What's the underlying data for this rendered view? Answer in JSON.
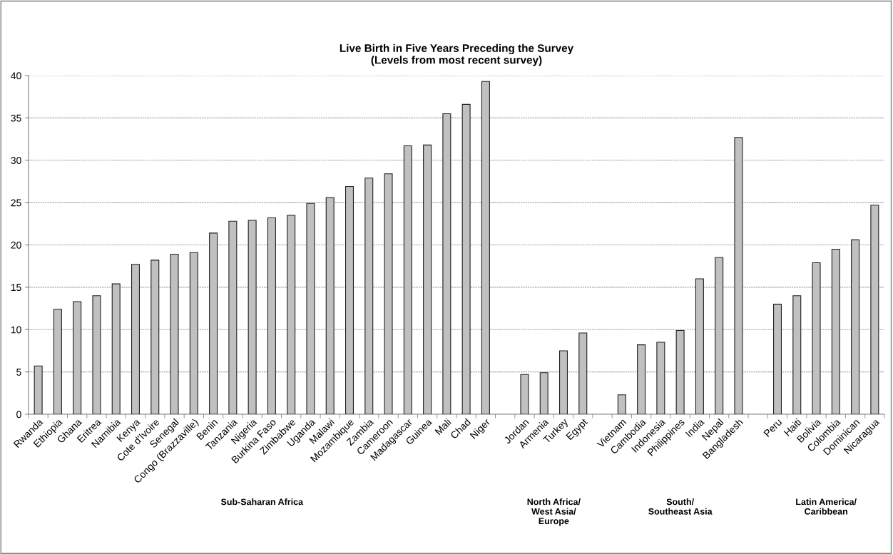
{
  "chart_data": {
    "type": "bar",
    "title": "Live Birth in Five Years Preceding the Survey\n(Levels from most recent survey)",
    "categories": [
      "Rwanda",
      "Ethiopia",
      "Ghana",
      "Eritrea",
      "Namibia",
      "Kenya",
      "Cote d'Ivoire",
      "Senegal",
      "Congo (Brazzaville)",
      "Benin",
      "Tanzania",
      "Nigeria",
      "Burkina Faso",
      "Zimbabwe",
      "Uganda",
      "Malawi",
      "Mozambique",
      "Zambia",
      "Cameroon",
      "Madagascar",
      "Guinea",
      "Mali",
      "Chad",
      "Niger",
      null,
      "Jordan",
      "Armenia",
      "Turkey",
      "Egypt",
      null,
      "Vietnam",
      "Cambodia",
      "Indonesia",
      "Philippines",
      "India",
      "Nepal",
      "Bangladesh",
      null,
      "Peru",
      "Haiti",
      "Bolivia",
      "Colombia",
      "Dominican",
      "Nicaragua"
    ],
    "values": [
      5.7,
      12.4,
      13.3,
      14.0,
      15.4,
      17.7,
      18.2,
      18.9,
      19.1,
      21.4,
      22.8,
      22.9,
      23.2,
      23.5,
      24.9,
      25.6,
      26.9,
      27.9,
      28.4,
      31.7,
      31.8,
      35.5,
      36.6,
      39.3,
      null,
      4.7,
      4.9,
      7.5,
      9.6,
      null,
      2.3,
      8.2,
      8.5,
      9.9,
      16.0,
      18.5,
      32.7,
      null,
      13.0,
      14.0,
      17.9,
      19.5,
      20.6,
      24.7
    ],
    "color": "#c0c0c0",
    "ylim": [
      0,
      40
    ],
    "yticks": [
      0,
      5,
      10,
      15,
      20,
      25,
      30,
      35,
      40
    ],
    "grid": "y",
    "annotations": [
      "Sub-Saharan Africa",
      "North Africa/\nWest Asia/\nEurope",
      "South/\nSoutheast Asia",
      "Latin America/\nCaribbean"
    ]
  }
}
